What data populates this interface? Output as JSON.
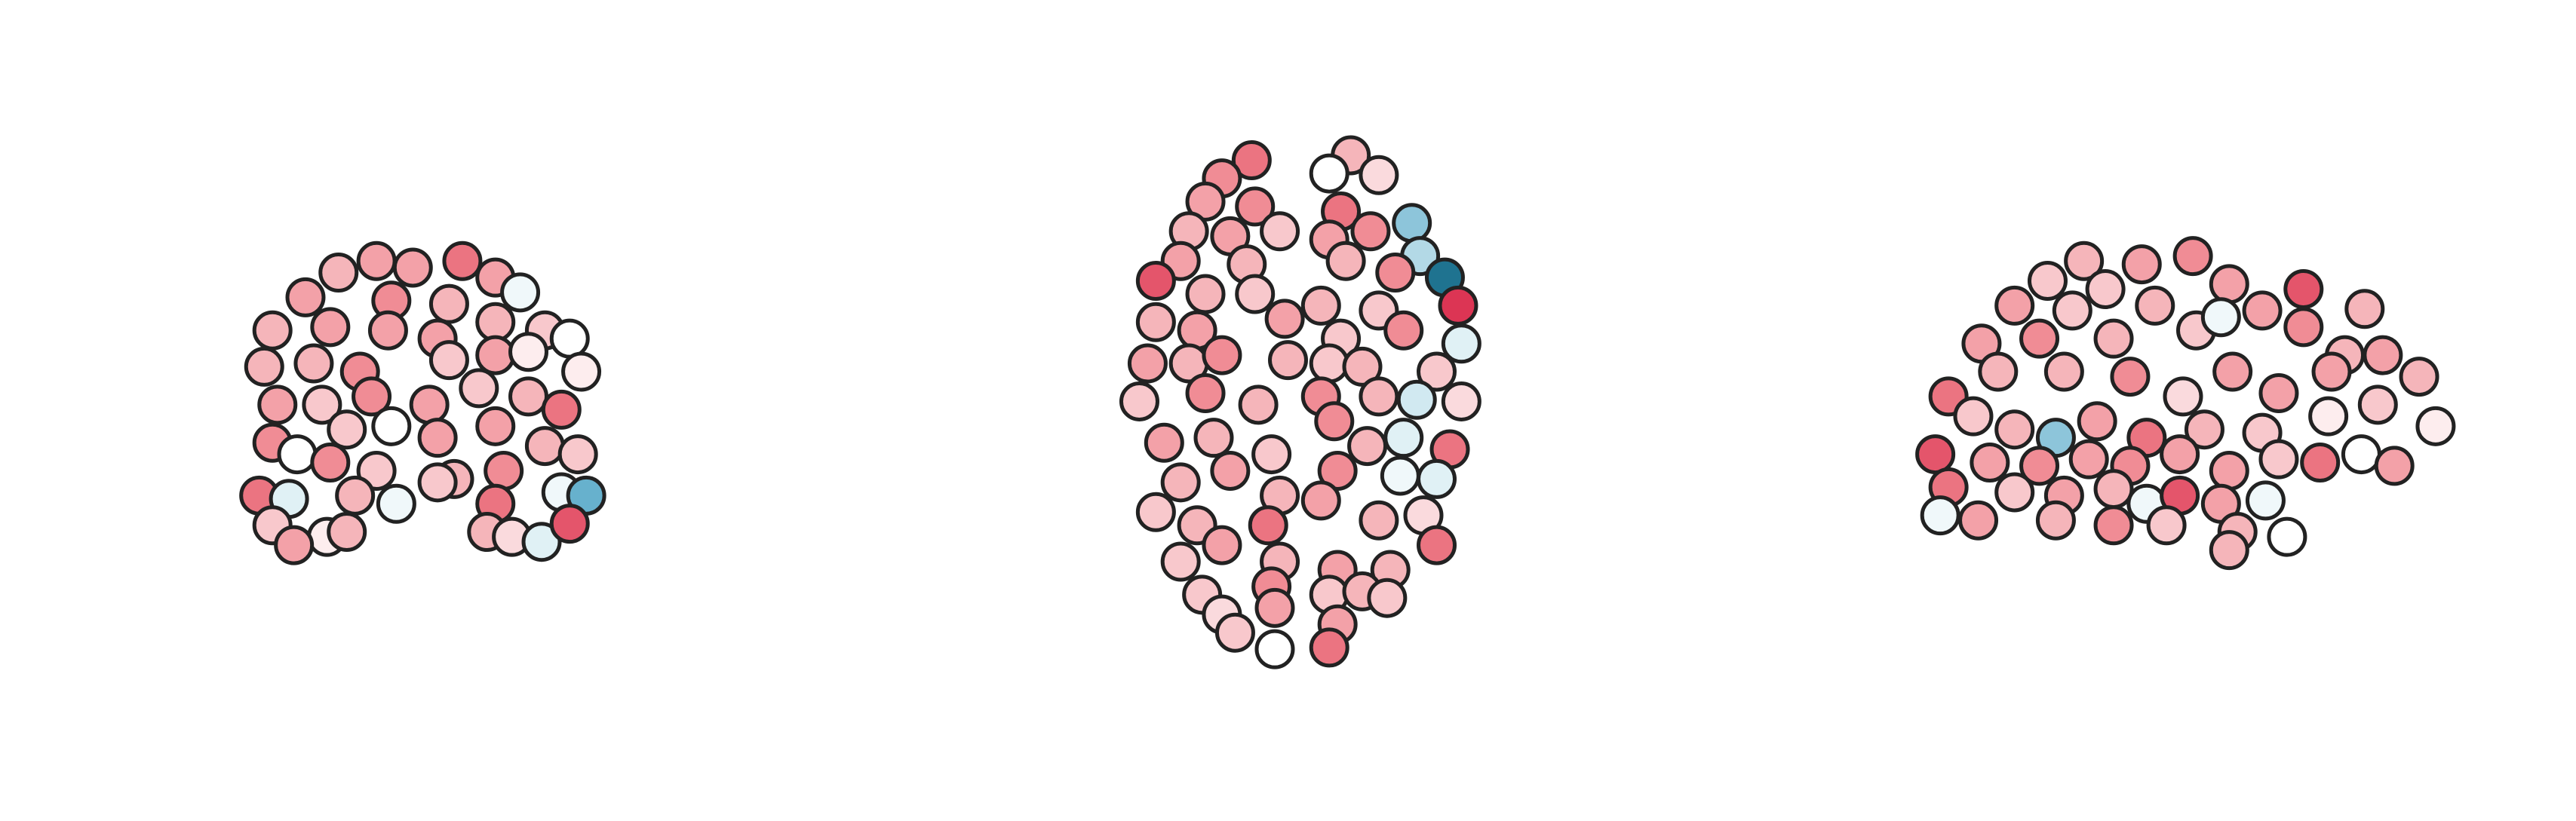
{
  "chart_data": {
    "type": "scatter",
    "xlim": [
      0,
      1560
    ],
    "ylim": [
      497,
      0
    ],
    "vlim": [
      -1,
      1
    ],
    "cmap": [
      "#0b5e7a",
      "#4ea3c4",
      "#cce7ef",
      "#ffffff",
      "#f7c2c6",
      "#ee7f89",
      "#d4153d"
    ],
    "series": [
      {
        "x": [
          228,
          205,
          250,
          280,
          300,
          185,
          237,
          272,
          315,
          165,
          200,
          235,
          265,
          300,
          330,
          345,
          160,
          190,
          218,
          272,
          300,
          320,
          352,
          168,
          195,
          225,
          260,
          290,
          320,
          340,
          165,
          210,
          237,
          265,
          300,
          330,
          350,
          180,
          200,
          228,
          275,
          305,
          340,
          355,
          157,
          175,
          215,
          265,
          300,
          165,
          198,
          210,
          178,
          295,
          310,
          328,
          345,
          240
        ],
        "y": [
          158,
          165,
          162,
          158,
          168,
          180,
          182,
          184,
          177,
          200,
          198,
          200,
          205,
          195,
          200,
          205,
          222,
          220,
          225,
          218,
          215,
          213,
          225,
          245,
          245,
          240,
          245,
          235,
          240,
          248,
          268,
          260,
          258,
          265,
          258,
          270,
          275,
          275,
          280,
          285,
          290,
          285,
          298,
          300,
          300,
          302,
          300,
          292,
          305,
          318,
          325,
          322,
          330,
          322,
          325,
          328,
          317,
          305
        ],
        "values": [
          0.5,
          0.4,
          0.5,
          0.7,
          0.5,
          0.5,
          0.6,
          0.4,
          -0.1,
          0.4,
          0.5,
          0.5,
          0.5,
          0.4,
          0.3,
          0,
          0.4,
          0.4,
          0.6,
          0.3,
          0.5,
          0.1,
          0.1,
          0.5,
          0.3,
          0.6,
          0.5,
          0.3,
          0.4,
          0.7,
          0.6,
          0.3,
          0,
          0.5,
          0.5,
          0.4,
          0.3,
          0,
          0.6,
          0.3,
          0.4,
          0.6,
          -0.1,
          -0.6,
          0.7,
          -0.2,
          0.4,
          0.3,
          0.7,
          0.3,
          0.1,
          0.4,
          0.5,
          0.4,
          0.2,
          -0.2,
          0.8,
          -0.1
        ]
      },
      {
        "x": [
          758,
          818,
          740,
          805,
          835,
          730,
          760,
          812,
          855,
          720,
          745,
          775,
          805,
          830,
          860,
          715,
          755,
          815,
          845,
          875,
          700,
          730,
          760,
          800,
          835,
          883,
          700,
          725,
          778,
          812,
          850,
          885,
          695,
          720,
          740,
          780,
          805,
          825,
          870,
          690,
          730,
          762,
          800,
          835,
          858,
          885,
          705,
          735,
          770,
          808,
          828,
          850,
          878,
          715,
          745,
          775,
          810,
          848,
          870,
          700,
          725,
          768,
          800,
          835,
          862,
          870,
          715,
          740,
          775,
          810,
          842,
          728,
          770,
          805,
          825,
          740,
          772,
          810,
          748,
          772,
          805,
          840
        ],
        "y": [
          97,
          94,
          108,
          105,
          106,
          122,
          125,
          128,
          135,
          140,
          143,
          140,
          145,
          140,
          155,
          158,
          160,
          158,
          165,
          168,
          170,
          178,
          178,
          185,
          188,
          185,
          195,
          200,
          193,
          205,
          200,
          208,
          220,
          220,
          215,
          218,
          220,
          222,
          225,
          243,
          238,
          245,
          240,
          240,
          242,
          243,
          268,
          265,
          275,
          255,
          270,
          265,
          272,
          292,
          285,
          300,
          285,
          288,
          290,
          310,
          318,
          318,
          303,
          315,
          312,
          330,
          340,
          330,
          340,
          345,
          345,
          360,
          355,
          360,
          358,
          372,
          368,
          378,
          383,
          393,
          392,
          362
        ],
        "values": [
          0.7,
          0.4,
          0.6,
          0,
          0.2,
          0.5,
          0.6,
          0.7,
          -0.5,
          0.4,
          0.5,
          0.3,
          0.5,
          0.6,
          -0.4,
          0.5,
          0.4,
          0.4,
          0.6,
          -0.9,
          0.8,
          0.4,
          0.3,
          0.4,
          0.3,
          0.9,
          0.4,
          0.5,
          0.5,
          0.3,
          0.6,
          -0.2,
          0.5,
          0.4,
          0.6,
          0.4,
          0.3,
          0.4,
          0.3,
          0.3,
          0.6,
          0.4,
          0.6,
          0.4,
          -0.3,
          0.2,
          0.5,
          0.4,
          0.3,
          0.6,
          0.4,
          -0.2,
          0.7,
          0.4,
          0.5,
          0.4,
          0.6,
          -0.1,
          -0.2,
          0.3,
          0.4,
          0.7,
          0.5,
          0.4,
          0.2,
          0.7,
          0.3,
          0.5,
          0.4,
          0.5,
          0.4,
          0.3,
          0.6,
          0.3,
          0.4,
          0.2,
          0.5,
          0.5,
          0.3,
          0,
          0.7,
          0.3
        ]
      },
      {
        "x": [
          1262,
          1297,
          1328,
          1240,
          1275,
          1350,
          1395,
          1220,
          1255,
          1305,
          1370,
          1432,
          1200,
          1235,
          1280,
          1330,
          1345,
          1395,
          1420,
          1443,
          1180,
          1210,
          1250,
          1290,
          1322,
          1352,
          1380,
          1412,
          1465,
          1195,
          1220,
          1245,
          1270,
          1300,
          1335,
          1370,
          1410,
          1440,
          1475,
          1172,
          1205,
          1235,
          1265,
          1290,
          1320,
          1350,
          1380,
          1405,
          1430,
          1450,
          1180,
          1220,
          1250,
          1280,
          1300,
          1320,
          1345,
          1372,
          1175,
          1198,
          1245,
          1280,
          1312,
          1355,
          1385,
          1350
        ],
        "y": [
          158,
          160,
          155,
          170,
          175,
          172,
          175,
          185,
          188,
          185,
          188,
          187,
          208,
          205,
          205,
          200,
          192,
          198,
          215,
          215,
          240,
          225,
          225,
          228,
          240,
          225,
          238,
          225,
          228,
          252,
          260,
          265,
          255,
          265,
          260,
          262,
          252,
          245,
          258,
          275,
          280,
          282,
          278,
          282,
          275,
          285,
          278,
          280,
          275,
          282,
          295,
          298,
          300,
          296,
          305,
          300,
          305,
          303,
          312,
          315,
          315,
          318,
          318,
          322,
          325,
          333
        ],
        "values": [
          0.4,
          0.5,
          0.6,
          0.3,
          0.3,
          0.5,
          0.8,
          0.5,
          0.3,
          0.4,
          0.5,
          0.4,
          0.5,
          0.6,
          0.4,
          0.3,
          -0.1,
          0.6,
          0.4,
          0.5,
          0.7,
          0.4,
          0.4,
          0.6,
          0.2,
          0.5,
          0.5,
          0.5,
          0.4,
          0.3,
          0.4,
          -0.5,
          0.5,
          0.7,
          0.4,
          0.3,
          0.1,
          0.3,
          0.1,
          0.8,
          0.5,
          0.6,
          0.5,
          0.6,
          0.5,
          0.5,
          0.3,
          0.7,
          0,
          0.5,
          0.7,
          0.3,
          0.5,
          0.4,
          -0.1,
          0.8,
          0.5,
          -0.1,
          -0.1,
          0.5,
          0.4,
          0.6,
          0.3,
          0.4,
          0,
          0.4
        ]
      }
    ]
  }
}
